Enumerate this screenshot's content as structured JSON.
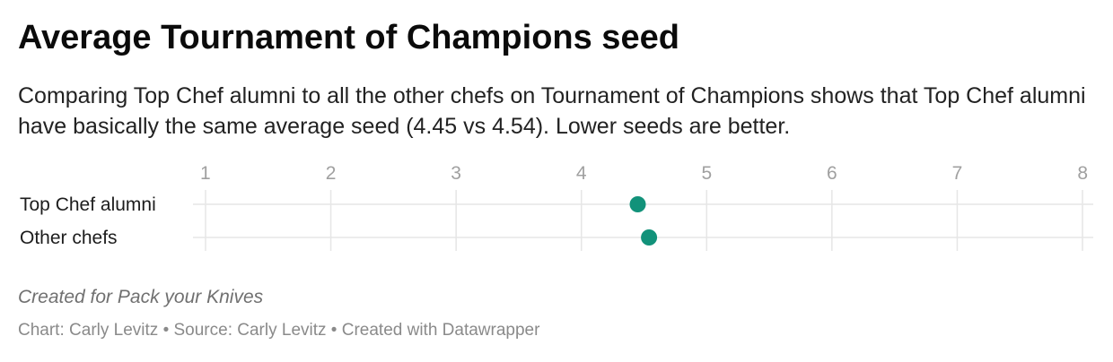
{
  "header": {
    "title": "Average Tournament of Champions seed",
    "subtitle": "Comparing Top Chef alumni to all the other chefs on Tournament of Champions shows that Top Chef alumni have basically the same average seed (4.45 vs 4.54). Lower seeds are better."
  },
  "footer": {
    "notes": "Created for Pack your Knives",
    "chart_label": "Chart:",
    "chart_author": "Carly Levitz",
    "separator": "•",
    "source_label": "Source:",
    "source": "Carly Levitz",
    "created_with": "Created with Datawrapper"
  },
  "chart_data": {
    "type": "scatter",
    "title": "Average Tournament of Champions seed",
    "categories": [
      "Top Chef alumni",
      "Other chefs"
    ],
    "values": [
      4.45,
      4.54
    ],
    "x_ticks": [
      1,
      2,
      3,
      4,
      5,
      6,
      7,
      8
    ],
    "xlim": [
      1,
      8
    ],
    "grid": true,
    "dot_color": "#12927a",
    "gridline_color": "#e6e6e6",
    "tick_label_color": "#a0a0a0"
  }
}
